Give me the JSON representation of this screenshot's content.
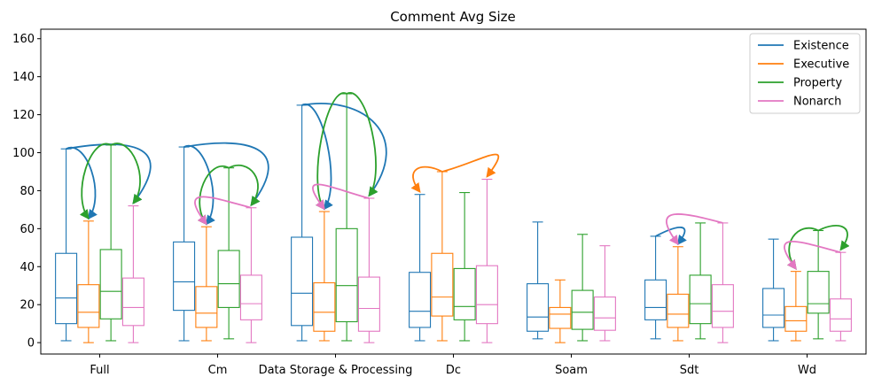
{
  "chart_data": {
    "type": "box",
    "title": "Comment Avg Size",
    "xlabel": "",
    "ylabel": "",
    "ylim": [
      -6,
      165
    ],
    "yticks": [
      0,
      20,
      40,
      60,
      80,
      100,
      120,
      140,
      160
    ],
    "grid": false,
    "legend_position": "top-right",
    "categories": [
      "Full",
      "Cm",
      "Data Storage & Processing",
      "Dc",
      "Soam",
      "Sdt",
      "Wd"
    ],
    "series": [
      {
        "name": "Existence",
        "color": "#1f77b4",
        "boxes": [
          {
            "whislo": 1,
            "q1": 10,
            "med": 23.5,
            "q3": 47,
            "whishi": 102
          },
          {
            "whislo": 1,
            "q1": 17,
            "med": 32,
            "q3": 53,
            "whishi": 103
          },
          {
            "whislo": 1,
            "q1": 9,
            "med": 26,
            "q3": 55.5,
            "whishi": 125
          },
          {
            "whislo": 1,
            "q1": 8,
            "med": 16.5,
            "q3": 37,
            "whishi": 78
          },
          {
            "whislo": 2,
            "q1": 6,
            "med": 13.5,
            "q3": 31,
            "whishi": 63.5
          },
          {
            "whislo": 2,
            "q1": 12,
            "med": 18.5,
            "q3": 33,
            "whishi": 56
          },
          {
            "whislo": 1,
            "q1": 8,
            "med": 14.5,
            "q3": 28.5,
            "whishi": 54.5
          }
        ]
      },
      {
        "name": "Executive",
        "color": "#ff7f0e",
        "boxes": [
          {
            "whislo": 0,
            "q1": 8,
            "med": 16,
            "q3": 30.5,
            "whishi": 64
          },
          {
            "whislo": 1,
            "q1": 8,
            "med": 15.5,
            "q3": 29.5,
            "whishi": 61
          },
          {
            "whislo": 1,
            "q1": 6,
            "med": 16,
            "q3": 31.5,
            "whishi": 69
          },
          {
            "whislo": 1,
            "q1": 14,
            "med": 24,
            "q3": 47,
            "whishi": 90
          },
          {
            "whislo": 0,
            "q1": 7.5,
            "med": 15,
            "q3": 18.5,
            "whishi": 33
          },
          {
            "whislo": 1,
            "q1": 8,
            "med": 15,
            "q3": 25.5,
            "whishi": 50.5
          },
          {
            "whislo": 1,
            "q1": 6,
            "med": 11.5,
            "q3": 19,
            "whishi": 37.5
          }
        ]
      },
      {
        "name": "Property",
        "color": "#2ca02c",
        "boxes": [
          {
            "whislo": 1,
            "q1": 12.5,
            "med": 27,
            "q3": 49,
            "whishi": 104
          },
          {
            "whislo": 2,
            "q1": 18.5,
            "med": 31,
            "q3": 48.5,
            "whishi": 92
          },
          {
            "whislo": 1,
            "q1": 11,
            "med": 30,
            "q3": 60,
            "whishi": 131
          },
          {
            "whislo": 1,
            "q1": 12,
            "med": 19,
            "q3": 39,
            "whishi": 79
          },
          {
            "whislo": 1,
            "q1": 7,
            "med": 16,
            "q3": 27.5,
            "whishi": 57
          },
          {
            "whislo": 2,
            "q1": 10,
            "med": 20.5,
            "q3": 35.5,
            "whishi": 63
          },
          {
            "whislo": 2,
            "q1": 15.5,
            "med": 20.5,
            "q3": 37.5,
            "whishi": 59
          }
        ]
      },
      {
        "name": "Nonarch",
        "color": "#e377c2",
        "boxes": [
          {
            "whislo": 0,
            "q1": 9,
            "med": 18.5,
            "q3": 34,
            "whishi": 72
          },
          {
            "whislo": 0,
            "q1": 12,
            "med": 20.5,
            "q3": 35.5,
            "whishi": 71
          },
          {
            "whislo": 0,
            "q1": 6,
            "med": 18,
            "q3": 34.5,
            "whishi": 76
          },
          {
            "whislo": 0,
            "q1": 10,
            "med": 20,
            "q3": 40.5,
            "whishi": 86
          },
          {
            "whislo": 1,
            "q1": 6.5,
            "med": 13,
            "q3": 24,
            "whishi": 51
          },
          {
            "whislo": 0,
            "q1": 8,
            "med": 16.5,
            "q3": 30.5,
            "whishi": 63
          },
          {
            "whislo": 1,
            "q1": 6,
            "med": 12.5,
            "q3": 23,
            "whishi": 47.5
          }
        ]
      }
    ],
    "annotations": [
      {
        "category": 0,
        "from_series": 0,
        "to_series": 1,
        "color": "#1f77b4"
      },
      {
        "category": 0,
        "from_series": 0,
        "to_series": 3,
        "color": "#1f77b4"
      },
      {
        "category": 0,
        "from_series": 2,
        "to_series": 1,
        "color": "#2ca02c"
      },
      {
        "category": 0,
        "from_series": 2,
        "to_series": 3,
        "color": "#2ca02c"
      },
      {
        "category": 1,
        "from_series": 0,
        "to_series": 1,
        "color": "#1f77b4"
      },
      {
        "category": 1,
        "from_series": 0,
        "to_series": 3,
        "color": "#1f77b4"
      },
      {
        "category": 1,
        "from_series": 2,
        "to_series": 1,
        "color": "#2ca02c"
      },
      {
        "category": 1,
        "from_series": 2,
        "to_series": 3,
        "color": "#2ca02c"
      },
      {
        "category": 1,
        "from_series": 3,
        "to_series": 1,
        "color": "#e377c2"
      },
      {
        "category": 2,
        "from_series": 0,
        "to_series": 1,
        "color": "#1f77b4"
      },
      {
        "category": 2,
        "from_series": 0,
        "to_series": 3,
        "color": "#1f77b4"
      },
      {
        "category": 2,
        "from_series": 2,
        "to_series": 1,
        "color": "#2ca02c"
      },
      {
        "category": 2,
        "from_series": 2,
        "to_series": 3,
        "color": "#2ca02c"
      },
      {
        "category": 2,
        "from_series": 3,
        "to_series": 1,
        "color": "#e377c2"
      },
      {
        "category": 3,
        "from_series": 1,
        "to_series": 0,
        "color": "#ff7f0e"
      },
      {
        "category": 3,
        "from_series": 1,
        "to_series": 3,
        "color": "#ff7f0e"
      },
      {
        "category": 5,
        "from_series": 0,
        "to_series": 1,
        "color": "#1f77b4"
      },
      {
        "category": 5,
        "from_series": 3,
        "to_series": 1,
        "color": "#e377c2"
      },
      {
        "category": 6,
        "from_series": 2,
        "to_series": 1,
        "color": "#2ca02c"
      },
      {
        "category": 6,
        "from_series": 2,
        "to_series": 3,
        "color": "#2ca02c"
      },
      {
        "category": 6,
        "from_series": 3,
        "to_series": 1,
        "color": "#e377c2"
      }
    ]
  }
}
